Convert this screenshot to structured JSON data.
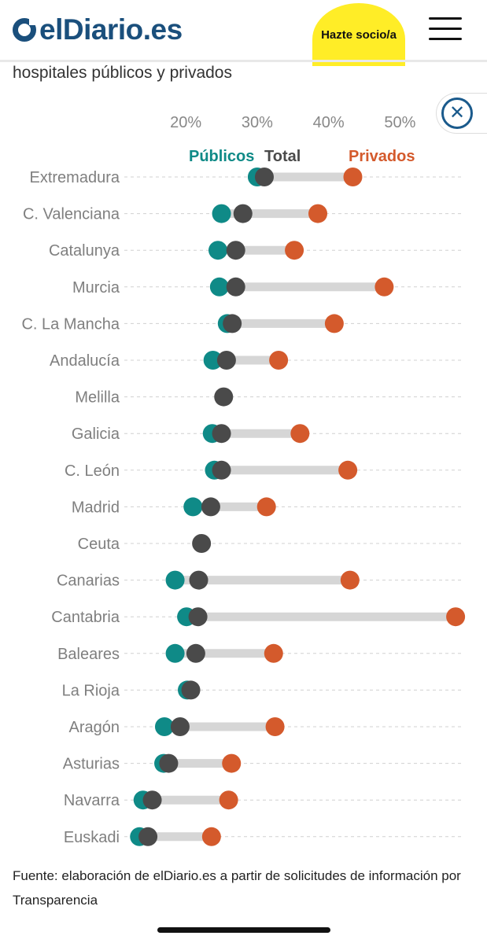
{
  "header": {
    "logo_text": "elDiario.es",
    "cta_label": "Hazte socio/a",
    "menu_icon": "hamburger-icon"
  },
  "subtitle": "hospitales públicos y privados",
  "close_icon": "close-icon",
  "close_glyph": "✕",
  "colors": {
    "publicos": "#0f8a87",
    "total": "#4a4a4a",
    "privados": "#d45a2c",
    "range_bar": "#d6d6d6"
  },
  "chart_data": {
    "type": "dumbbell",
    "x_ticks": [
      "20%",
      "30%",
      "40%",
      "50%"
    ],
    "x_tick_values": [
      20,
      30,
      40,
      50
    ],
    "xlim": [
      10.5,
      59
    ],
    "legend": {
      "publicos": "Públicos",
      "total": "Total",
      "privados": "Privados"
    },
    "grid": "dashed horizontal",
    "rows": [
      {
        "region": "Extremadura",
        "publicos": 30.0,
        "total": 31.0,
        "privados": 43.4
      },
      {
        "region": "C. Valenciana",
        "publicos": 25.0,
        "total": 28.0,
        "privados": 38.5
      },
      {
        "region": "Catalunya",
        "publicos": 24.5,
        "total": 27.0,
        "privados": 35.2
      },
      {
        "region": "Murcia",
        "publicos": 24.7,
        "total": 27.0,
        "privados": 47.8
      },
      {
        "region": "C. La Mancha",
        "publicos": 25.8,
        "total": 26.5,
        "privados": 40.8
      },
      {
        "region": "Andalucía",
        "publicos": 23.8,
        "total": 25.7,
        "privados": 33.0
      },
      {
        "region": "Melilla",
        "publicos": null,
        "total": 25.3,
        "privados": null
      },
      {
        "region": "Galicia",
        "publicos": 23.7,
        "total": 25.0,
        "privados": 36.0
      },
      {
        "region": "C. León",
        "publicos": 24.0,
        "total": 25.0,
        "privados": 42.7
      },
      {
        "region": "Madrid",
        "publicos": 21.0,
        "total": 23.5,
        "privados": 31.3
      },
      {
        "region": "Ceuta",
        "publicos": null,
        "total": 22.2,
        "privados": null
      },
      {
        "region": "Canarias",
        "publicos": 18.5,
        "total": 21.8,
        "privados": 43.0
      },
      {
        "region": "Cantabria",
        "publicos": 20.1,
        "total": 21.7,
        "privados": 57.8
      },
      {
        "region": "Baleares",
        "publicos": 18.5,
        "total": 21.4,
        "privados": 32.3
      },
      {
        "region": "La Rioja",
        "publicos": 20.2,
        "total": 20.7,
        "privados": null
      },
      {
        "region": "Aragón",
        "publicos": 17.0,
        "total": 19.2,
        "privados": 32.5
      },
      {
        "region": "Asturias",
        "publicos": 16.9,
        "total": 17.6,
        "privados": 26.4
      },
      {
        "region": "Navarra",
        "publicos": 14.0,
        "total": 15.3,
        "privados": 26.0
      },
      {
        "region": "Euskadi",
        "publicos": 13.5,
        "total": 14.7,
        "privados": 23.6
      }
    ]
  },
  "source": "Fuente: elaboración de elDiario.es a partir de solicitudes de información por Transparencia"
}
